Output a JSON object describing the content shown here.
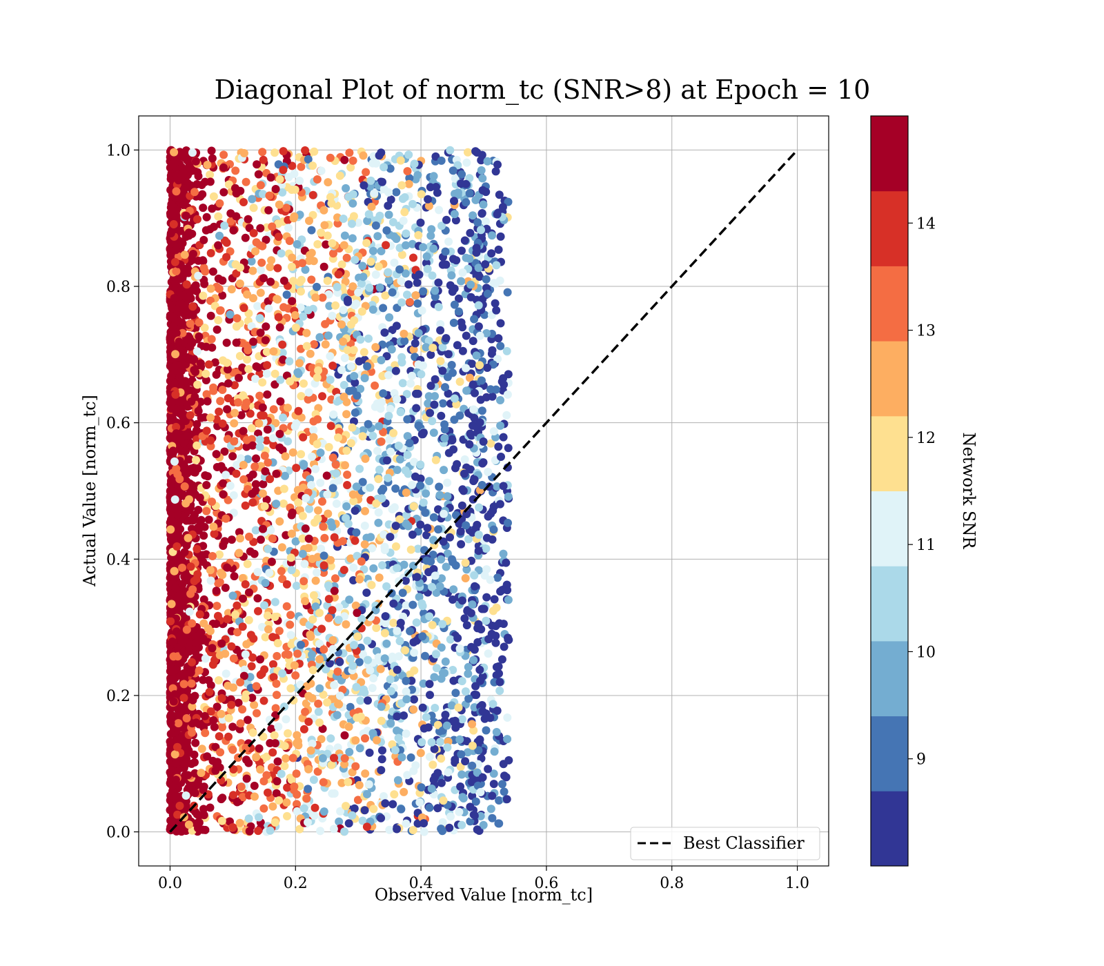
{
  "chart_data": {
    "type": "scatter",
    "title": "Diagonal Plot of norm_tc (SNR>8) at Epoch = 10",
    "xlabel": "Observed Value [norm_tc]",
    "ylabel": "Actual Value [norm_tc]",
    "xlim": [
      -0.05,
      1.05
    ],
    "ylim": [
      -0.05,
      1.05
    ],
    "x_ticks": [
      "0.0",
      "0.2",
      "0.4",
      "0.6",
      "0.8",
      "1.0"
    ],
    "y_ticks": [
      "0.0",
      "0.2",
      "0.4",
      "0.6",
      "0.8",
      "1.0"
    ],
    "x_tick_values": [
      0.0,
      0.2,
      0.4,
      0.6,
      0.8,
      1.0
    ],
    "y_tick_values": [
      0.0,
      0.2,
      0.4,
      0.6,
      0.8,
      1.0
    ],
    "grid": true,
    "legend": {
      "placement": "lower-right",
      "entries": [
        {
          "label": "Best Classifier",
          "style": "dashed",
          "color": "#000000"
        }
      ]
    },
    "reference_line": {
      "label": "Best Classifier",
      "x": [
        0.0,
        1.0
      ],
      "y": [
        0.0,
        1.0
      ],
      "color": "#000000",
      "style": "dashed"
    },
    "scatter_summary": {
      "description_x_range": [
        0.0,
        0.54
      ],
      "description_y_range": [
        0.0,
        1.0
      ],
      "color_trend": "high SNR near x=0, low SNR near x=0.5"
    },
    "colorbar": {
      "label": "Network SNR",
      "min": 8.0,
      "max": 15.0,
      "bin_count": 10,
      "tick_labels": [
        "9",
        "10",
        "11",
        "12",
        "13",
        "14"
      ],
      "tick_values": [
        9,
        10,
        11,
        12,
        13,
        14
      ],
      "colors": [
        "#313695",
        "#4575b4",
        "#74add1",
        "#abd9e9",
        "#e0f3f8",
        "#fee090",
        "#fdae61",
        "#f46d43",
        "#d73027",
        "#a50026"
      ]
    }
  }
}
